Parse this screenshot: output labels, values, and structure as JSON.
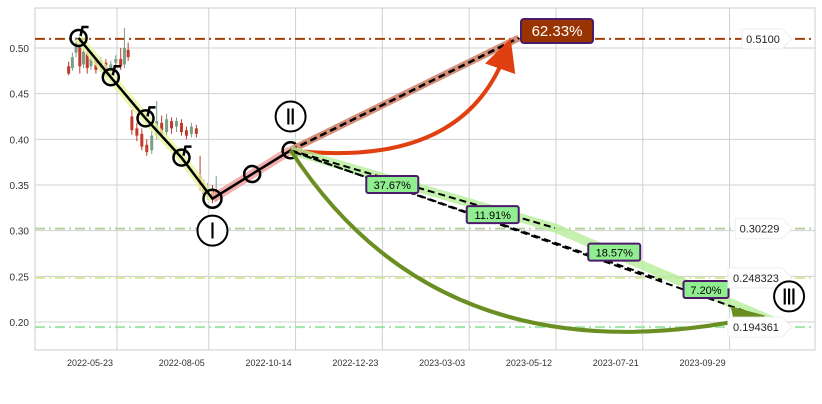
{
  "chart_data": {
    "type": "candlestick",
    "title": "",
    "xlabel": "",
    "ylabel": "",
    "ylim": [
      0.17,
      0.545
    ],
    "grid": true,
    "x_tick_labels": [
      "2022-05-23",
      "2022-08-05",
      "2022-10-14",
      "2022-12-23",
      "2023-03-03",
      "2023-05-12",
      "2023-07-21",
      "2023-09-29"
    ],
    "y_ticks": [
      0.2,
      0.25,
      0.3,
      0.35,
      0.4,
      0.45,
      0.5
    ],
    "y_tick_labels": [
      "0.20",
      "0.25",
      "0.30",
      "0.35",
      "0.40",
      "0.45",
      "0.50"
    ],
    "colors": {
      "up": "#7a9e86",
      "down": "#c0392b",
      "grid": "#d0d0d0"
    },
    "candles": [
      [
        "2022-04-14",
        0.48,
        0.472,
        0.47,
        0.485
      ],
      [
        "2022-04-17",
        0.478,
        0.49,
        0.475,
        0.495
      ],
      [
        "2022-04-20",
        0.495,
        0.505,
        0.49,
        0.512
      ],
      [
        "2022-04-23",
        0.503,
        0.48,
        0.472,
        0.508
      ],
      [
        "2022-04-26",
        0.482,
        0.496,
        0.478,
        0.5
      ],
      [
        "2022-04-29",
        0.494,
        0.478,
        0.472,
        0.498
      ],
      [
        "2022-05-02",
        0.48,
        0.488,
        0.476,
        0.492
      ],
      [
        "2022-05-06",
        0.486,
        0.476,
        0.472,
        0.49
      ],
      [
        "2022-05-10",
        0.478,
        0.486,
        0.474,
        0.49
      ],
      [
        "2022-05-14",
        0.484,
        0.474,
        0.468,
        0.488
      ],
      [
        "2022-05-18",
        0.476,
        0.482,
        0.47,
        0.486
      ],
      [
        "2022-05-22",
        0.484,
        0.488,
        0.478,
        0.492
      ],
      [
        "2022-05-26",
        0.488,
        0.48,
        0.476,
        0.5
      ],
      [
        "2022-05-29",
        0.482,
        0.5,
        0.478,
        0.522
      ],
      [
        "2022-06-01",
        0.498,
        0.49,
        0.486,
        0.506
      ],
      [
        "2022-06-04",
        0.425,
        0.41,
        0.405,
        0.432
      ],
      [
        "2022-06-08",
        0.412,
        0.404,
        0.398,
        0.418
      ],
      [
        "2022-06-12",
        0.406,
        0.392,
        0.388,
        0.412
      ],
      [
        "2022-06-16",
        0.394,
        0.386,
        0.382,
        0.4
      ],
      [
        "2022-06-20",
        0.388,
        0.404,
        0.384,
        0.41
      ],
      [
        "2022-06-24",
        0.404,
        0.42,
        0.4,
        0.442
      ],
      [
        "2022-06-28",
        0.418,
        0.406,
        0.402,
        0.426
      ],
      [
        "2022-07-02",
        0.408,
        0.422,
        0.404,
        0.428
      ],
      [
        "2022-07-06",
        0.42,
        0.412,
        0.406,
        0.424
      ],
      [
        "2022-07-10",
        0.414,
        0.42,
        0.408,
        0.424
      ],
      [
        "2022-07-14",
        0.418,
        0.408,
        0.404,
        0.422
      ],
      [
        "2022-07-18",
        0.41,
        0.404,
        0.4,
        0.414
      ],
      [
        "2022-07-22",
        0.406,
        0.414,
        0.402,
        0.418
      ],
      [
        "2022-07-26",
        0.412,
        0.406,
        0.402,
        0.416
      ],
      [
        "2022-07-29",
        0.36,
        0.35,
        0.344,
        0.382
      ],
      [
        "2022-08-01",
        0.35,
        0.34,
        0.336,
        0.356
      ],
      [
        "2022-08-04",
        0.34,
        0.348,
        0.334,
        0.352
      ],
      [
        "2022-08-08",
        0.346,
        0.336,
        0.33,
        0.35
      ],
      [
        "2022-08-11",
        0.338,
        0.344,
        0.332,
        0.36
      ]
    ],
    "pattern_path": [
      {
        "date": "2022-04-22",
        "value": 0.511
      },
      {
        "date": "2022-05-18",
        "value": 0.468
      },
      {
        "date": "2022-06-15",
        "value": 0.423
      },
      {
        "date": "2022-07-14",
        "value": 0.38
      },
      {
        "date": "2022-08-08",
        "value": 0.335
      },
      {
        "date": "2022-09-09",
        "value": 0.362
      },
      {
        "date": "2022-10-10",
        "value": 0.388
      }
    ],
    "wave_labels": [
      {
        "label": "Ⅰ",
        "date": "2022-08-08",
        "value": 0.3
      },
      {
        "label": "Ⅱ",
        "date": "2022-10-10",
        "value": 0.425
      },
      {
        "label": "Ⅲ",
        "date": "2023-11-16",
        "value": 0.228
      }
    ],
    "target_up": {
      "from": {
        "date": "2022-10-10",
        "value": 0.388
      },
      "to": {
        "date": "2023-04-12",
        "value": 0.511
      },
      "label": "62.33%",
      "color": "#993300"
    },
    "target_down": {
      "from": {
        "date": "2022-10-10",
        "value": 0.388
      },
      "to": {
        "date": "2023-11-05",
        "value": 0.2
      },
      "color": "#6b8e23"
    },
    "segments": [
      {
        "label": "37.67%",
        "date": "2022-12-31",
        "value": 0.35
      },
      {
        "label": "11.91%",
        "date": "2023-03-22",
        "value": 0.317
      },
      {
        "label": "18.57%",
        "date": "2023-06-28",
        "value": 0.276
      },
      {
        "label": "7.20%",
        "date": "2023-09-10",
        "value": 0.235
      }
    ],
    "levels": [
      {
        "value": 0.51,
        "label": "0.5100",
        "color": "#a0400d"
      },
      {
        "value": 0.30229,
        "label": "0.30229",
        "color": "#b8d0a0"
      },
      {
        "value": 0.248323,
        "label": "0.248323",
        "color": "#d4ec9a"
      },
      {
        "value": 0.194361,
        "label": "0.194361",
        "color": "#9ee6a8"
      }
    ]
  }
}
